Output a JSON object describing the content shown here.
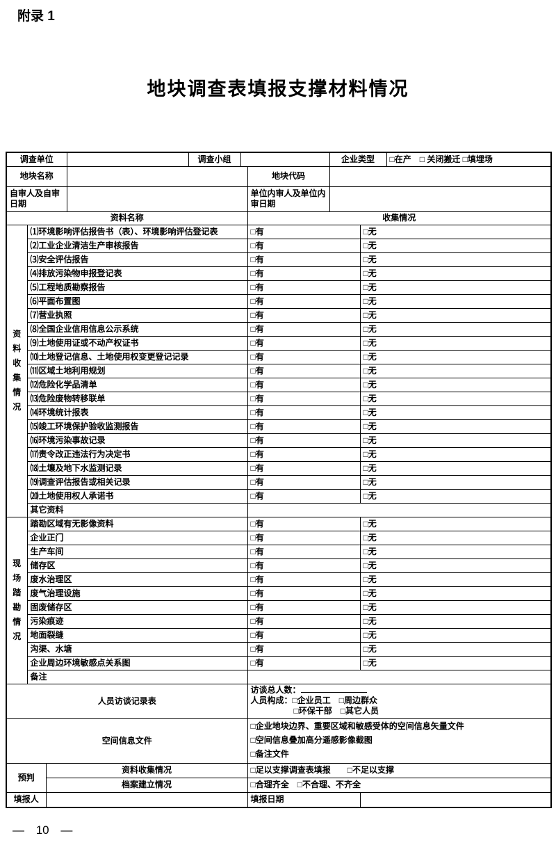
{
  "page": {
    "appendix_label": "附录 1",
    "title": "地块调查表填报支撑材料情况",
    "page_number": "— 10 —"
  },
  "header": {
    "survey_unit_label": "调查单位",
    "survey_team_label": "调查小组",
    "enterprise_type_label": "企业类型",
    "enterprise_type_options": "□在产　□ 关闭搬迁 □填埋场",
    "plot_name_label": "地块名称",
    "plot_code_label": "地块代码",
    "self_review_label": "自审人及自审日期",
    "internal_review_label": "单位内审人及单位内审日期",
    "material_name_header": "资料名称",
    "collection_status_header": "收集情况"
  },
  "checkbox": {
    "has": "□有",
    "none": "□无"
  },
  "sections": [
    {
      "label": "资料收集情况",
      "items": [
        "⑴环境影响评估报告书（表）、环境影响评估登记表",
        "⑵工业企业清洁生产审核报告",
        "⑶安全评估报告",
        "⑷排放污染物申报登记表",
        "⑸工程地质勘察报告",
        "⑹平面布置图",
        "⑺营业执照",
        "⑻全国企业信用信息公示系统",
        "⑼土地使用证或不动产权证书",
        "⑽土地登记信息、土地使用权变更登记记录",
        "⑾区域土地利用规划",
        "⑿危险化学品清单",
        "⒀危险废物转移联单",
        "⒁环境统计报表",
        "⒂竣工环境保护验收监测报告",
        "⒃环境污染事故记录",
        "⒄责令改正违法行为决定书",
        "⒅土壤及地下水监测记录",
        "⒆调查评估报告或相关记录",
        "⒇土地使用权人承诺书"
      ],
      "tail": "其它资料"
    },
    {
      "label": "现场踏勘情况",
      "items": [
        "踏勘区域有无影像资料",
        "企业正门",
        "生产车间",
        "储存区",
        "废水治理区",
        "废气治理设施",
        "固废储存区",
        "污染痕迹",
        "地面裂缝",
        "沟渠、水塘",
        "企业周边环境敏感点关系图"
      ],
      "tail": "备注"
    }
  ],
  "interview": {
    "label": "人员访谈记录表",
    "line1": "访谈总人数：",
    "line2": "人员构成：□企业员工　□周边群众",
    "line3": "□环保干部　□其它人员"
  },
  "spatial": {
    "label": "空间信息文件",
    "lines": [
      "□企业地块边界、重要区域和敏感受体的空间信息矢量文件",
      "□空间信息叠加高分遥感影像截图",
      "□备注文件"
    ]
  },
  "prejudge": {
    "label": "预判",
    "row1_label": "资料收集情况",
    "row1_options": "□足以支撑调查表填报　　□不足以支撑",
    "row2_label": "档案建立情况",
    "row2_options": "□合理齐全　□不合理、不齐全"
  },
  "filler": {
    "name_label": "填报人",
    "date_label": "填报日期"
  }
}
